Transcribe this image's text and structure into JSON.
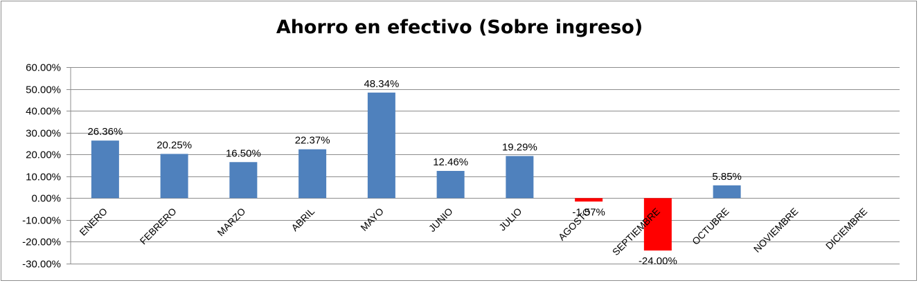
{
  "chart_data": {
    "type": "bar",
    "title": "Ahorro en efectivo (Sobre ingreso)",
    "categories": [
      "ENERO",
      "FEBRERO",
      "MARZO",
      "ABRIL",
      "MAYO",
      "JUNIO",
      "JULIO",
      "AGOSTO",
      "SEPTIEMBRE",
      "OCTUBRE",
      "NOVIEMBRE",
      "DICIEMBRE"
    ],
    "values": [
      26.36,
      20.25,
      16.5,
      22.37,
      48.34,
      12.46,
      19.29,
      -1.57,
      -24.0,
      5.85,
      null,
      null
    ],
    "data_labels": [
      "26.36%",
      "20.25%",
      "16.50%",
      "22.37%",
      "48.34%",
      "12.46%",
      "19.29%",
      "-1.57%",
      "-24.00%",
      "5.85%",
      "",
      ""
    ],
    "ylim": [
      -30,
      60
    ],
    "yticks": [
      60,
      50,
      40,
      30,
      20,
      10,
      0,
      -10,
      -20,
      -30
    ],
    "ytick_labels": [
      "60.00%",
      "50.00%",
      "40.00%",
      "30.00%",
      "20.00%",
      "10.00%",
      "0.00%",
      "-10.00%",
      "-20.00%",
      "-30.00%"
    ],
    "grid": true,
    "colors": {
      "positive": "#4f81bd",
      "negative": "#ff0000",
      "grid": "#8c8c8c"
    }
  }
}
